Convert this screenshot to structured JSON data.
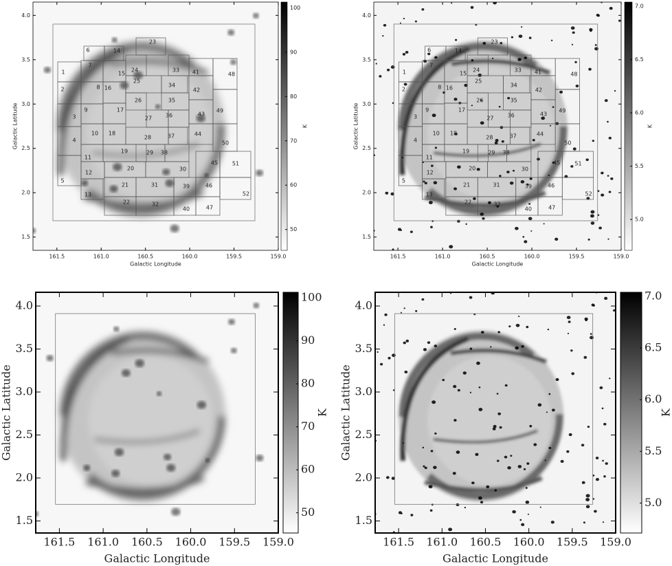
{
  "chart_data": [
    {
      "type": "image",
      "xlabel": "Galactic Longitude",
      "ylabel": "Galactic Latitude",
      "colorbar_label": "K",
      "xlim": [
        161.77,
        159.0
      ],
      "ylim": [
        1.35,
        4.15
      ],
      "clim": [
        45.3,
        101.3
      ],
      "xticks": [
        161.5,
        {
          "value": 161,
          "label": "161.0"
        },
        160.5,
        {
          "value": 160,
          "label": "160.0"
        },
        159.5,
        {
          "value": 159,
          "label": "159.0"
        }
      ],
      "yticks": [
        1.5,
        {
          "value": 2,
          "label": "2.0"
        },
        2.5,
        {
          "value": 3,
          "label": "3.0"
        },
        3.5,
        {
          "value": 4,
          "label": "4.0"
        }
      ],
      "cticks": [
        50,
        60,
        70,
        80,
        90,
        100
      ],
      "regions": [
        "1",
        "2",
        "3",
        "4",
        "5",
        "6",
        "7",
        "8",
        "9",
        "10",
        "11",
        "12",
        "13",
        "14",
        "15",
        "16",
        "17",
        "18",
        "19",
        "20",
        "21",
        "22",
        "23",
        "24",
        "25",
        "26",
        "27",
        "28",
        "29",
        "30",
        "31",
        "32",
        "33",
        "34",
        "35",
        "36",
        "37",
        "38",
        "39",
        "40",
        "41",
        "42",
        "43",
        "44",
        "45",
        "46",
        "47",
        "48",
        "49",
        "50",
        "51",
        "52"
      ]
    },
    {
      "type": "image",
      "xlabel": "Galactic Longitude",
      "ylabel": "Galactic Latitude",
      "colorbar_label": "K",
      "xlim": [
        161.77,
        159.0
      ],
      "ylim": [
        1.35,
        4.15
      ],
      "clim": [
        4.71,
        7.04
      ],
      "xticks": [
        161.5,
        {
          "value": 161,
          "label": "161.0"
        },
        160.5,
        {
          "value": 160,
          "label": "160.0"
        },
        159.5,
        {
          "value": 159,
          "label": "159.0"
        }
      ],
      "yticks": [
        1.5,
        {
          "value": 2,
          "label": "2.0"
        },
        2.5,
        {
          "value": 3,
          "label": "3.0"
        },
        3.5,
        {
          "value": 4,
          "label": "4.0"
        }
      ],
      "cticks": [
        {
          "value": 5,
          "label": "5.0"
        },
        5.5,
        {
          "value": 6,
          "label": "6.0"
        },
        6.5,
        {
          "value": 7,
          "label": "7.0"
        }
      ],
      "regions": [
        "1",
        "2",
        "3",
        "4",
        "5",
        "6",
        "7",
        "8",
        "9",
        "10",
        "11",
        "12",
        "13",
        "14",
        "15",
        "16",
        "17",
        "18",
        "19",
        "20",
        "21",
        "22",
        "23",
        "24",
        "25",
        "26",
        "27",
        "28",
        "29",
        "30",
        "31",
        "32",
        "33",
        "34",
        "35",
        "36",
        "37",
        "38",
        "39",
        "40",
        "41",
        "42",
        "43",
        "44",
        "45",
        "46",
        "47",
        "48",
        "49",
        "50",
        "51",
        "52"
      ]
    },
    {
      "type": "image",
      "xlabel": "Galactic Longitude",
      "ylabel": "Galactic Latitude",
      "colorbar_label": "K",
      "xlim": [
        161.77,
        159.0
      ],
      "ylim": [
        1.36,
        4.16
      ],
      "clim": [
        45.3,
        101.3
      ],
      "xticks": [
        161.5,
        {
          "value": 161,
          "label": "161.0"
        },
        160.5,
        {
          "value": 160,
          "label": "160.0"
        },
        159.5,
        {
          "value": 159,
          "label": "159.0"
        }
      ],
      "yticks": [
        1.5,
        {
          "value": 2,
          "label": "2.0"
        },
        2.5,
        {
          "value": 3,
          "label": "3.0"
        },
        3.5,
        {
          "value": 4,
          "label": "4.0"
        }
      ],
      "cticks": [
        50,
        60,
        70,
        80,
        90,
        100
      ]
    },
    {
      "type": "image",
      "xlabel": "Galactic Longitude",
      "ylabel": "Galactic Latitude",
      "colorbar_label": "K",
      "xlim": [
        161.77,
        159.0
      ],
      "ylim": [
        1.36,
        4.16
      ],
      "clim": [
        4.71,
        7.04
      ],
      "xticks": [
        161.5,
        {
          "value": 161,
          "label": "161.0"
        },
        160.5,
        {
          "value": 160,
          "label": "160.0"
        },
        159.5,
        {
          "value": 159,
          "label": "159.0"
        }
      ],
      "yticks": [
        1.5,
        {
          "value": 2,
          "label": "2.0"
        },
        2.5,
        {
          "value": 3,
          "label": "3.0"
        },
        3.5,
        {
          "value": 4,
          "label": "4.0"
        }
      ],
      "cticks": [
        {
          "value": 5,
          "label": "5.0"
        },
        5.5,
        {
          "value": 6,
          "label": "6.0"
        },
        6.5,
        {
          "value": 7,
          "label": "7.0"
        }
      ]
    }
  ]
}
